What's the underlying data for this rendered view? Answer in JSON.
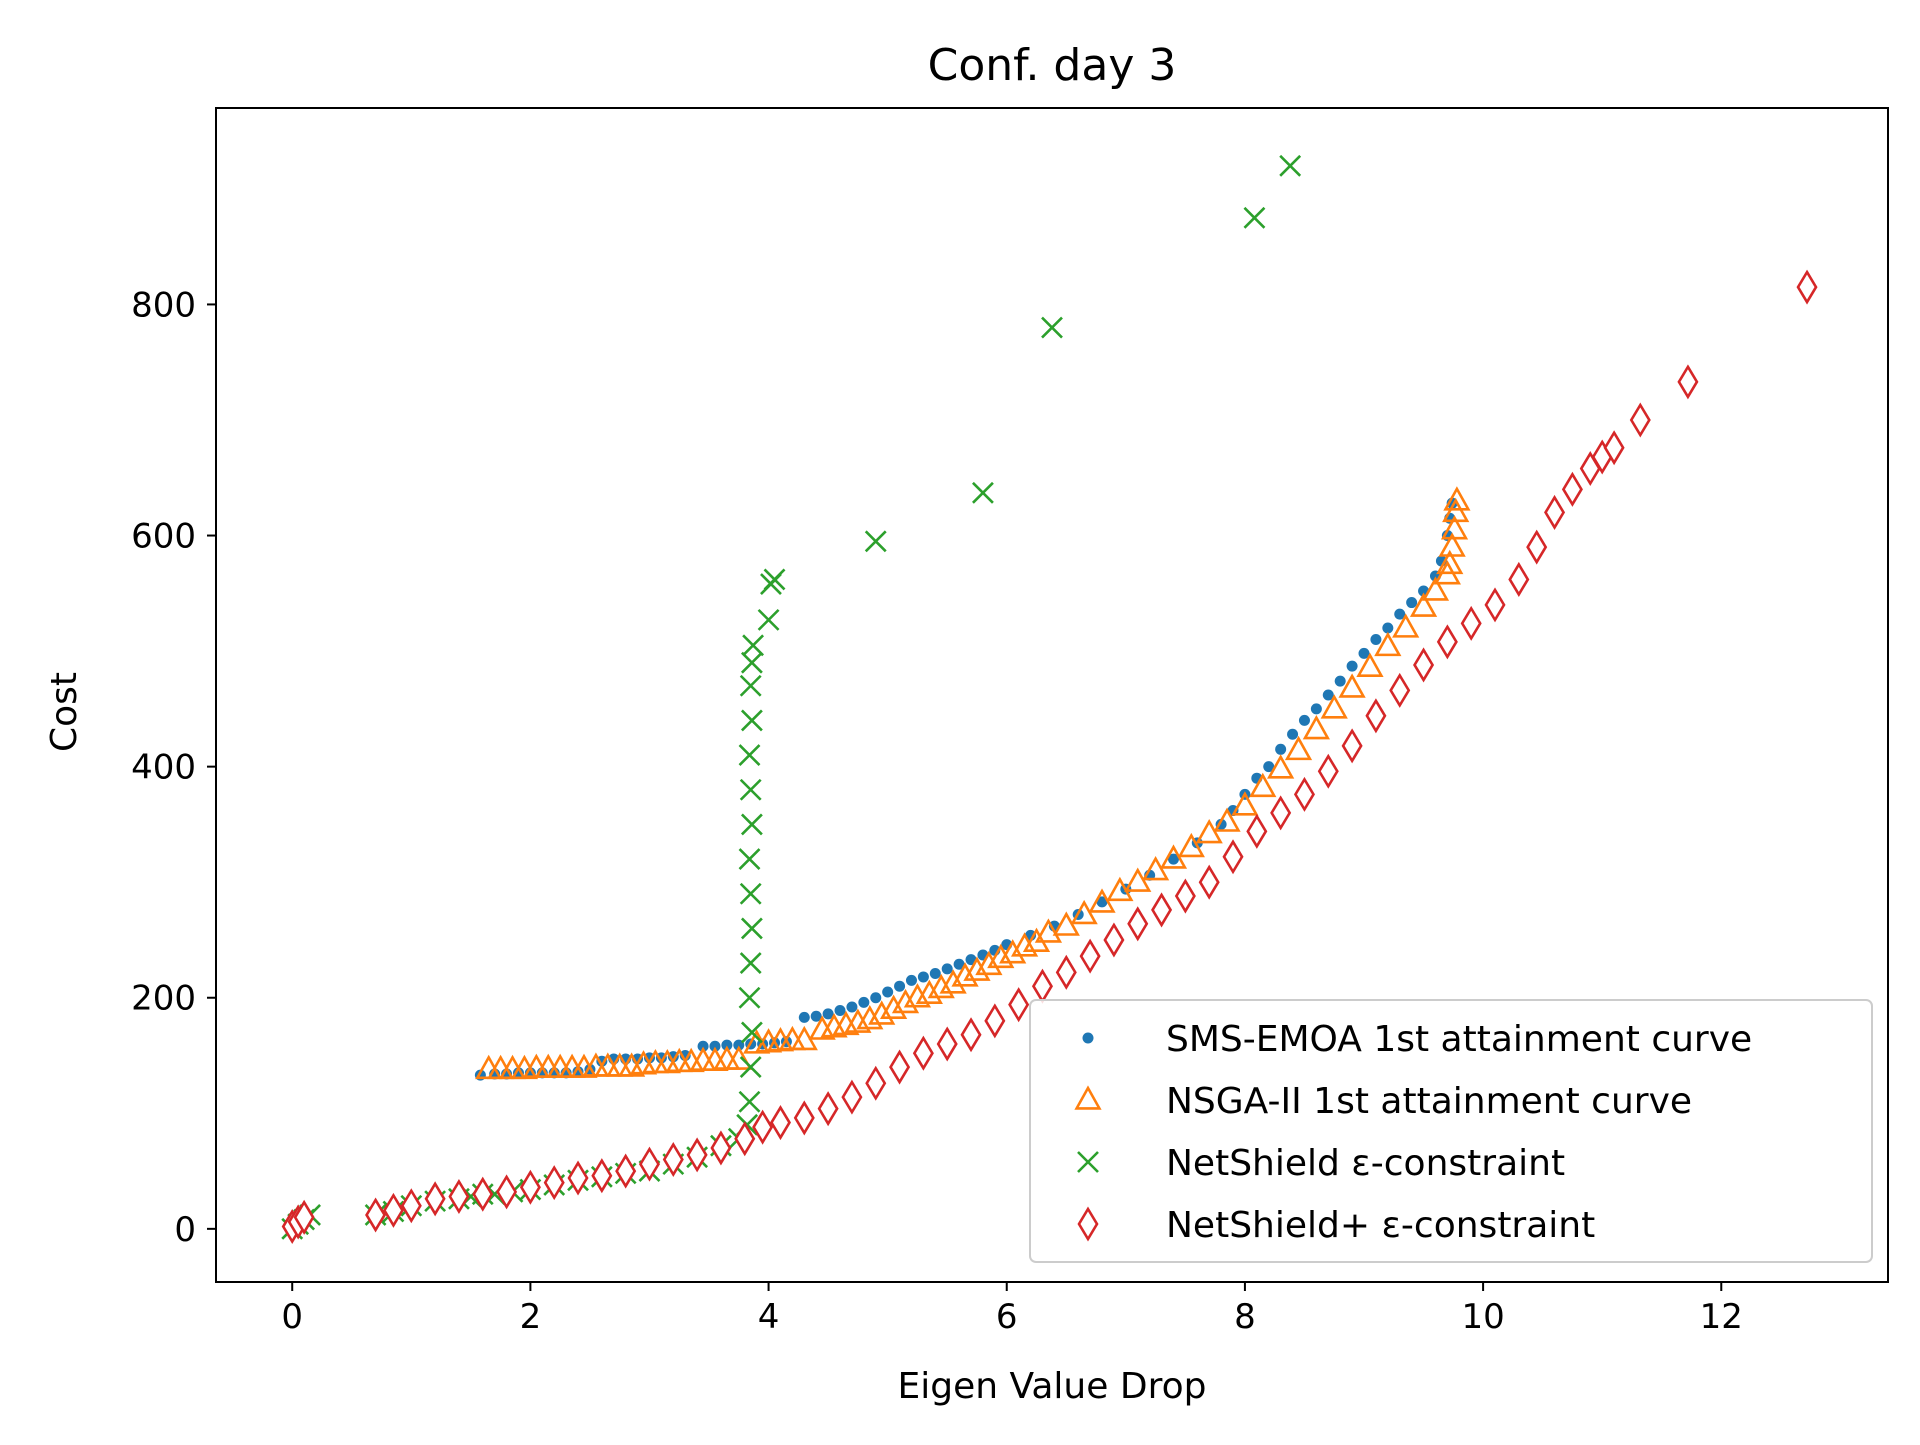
{
  "chart_data": {
    "type": "scatter",
    "title": "Conf. day 3",
    "xlabel": "Eigen Value Drop",
    "ylabel": "Cost",
    "xlim": [
      -0.64,
      13.4
    ],
    "ylim": [
      -46,
      970
    ],
    "xticks": [
      0,
      2,
      4,
      6,
      8,
      10,
      12
    ],
    "yticks": [
      0,
      200,
      400,
      600,
      800
    ],
    "grid": false,
    "legend_position": "lower right",
    "series": [
      {
        "name": "SMS-EMOA 1st attainment curve",
        "marker": "dot",
        "color": "#1f77b4",
        "points": [
          [
            1.58,
            133
          ],
          [
            1.7,
            134
          ],
          [
            1.8,
            134
          ],
          [
            1.9,
            135
          ],
          [
            2.0,
            135
          ],
          [
            2.1,
            135
          ],
          [
            2.2,
            135
          ],
          [
            2.3,
            135
          ],
          [
            2.4,
            136
          ],
          [
            2.5,
            138
          ],
          [
            2.6,
            145
          ],
          [
            2.7,
            147
          ],
          [
            2.8,
            147
          ],
          [
            2.9,
            147
          ],
          [
            3.0,
            148
          ],
          [
            3.1,
            148
          ],
          [
            3.2,
            149
          ],
          [
            3.3,
            150
          ],
          [
            3.45,
            158
          ],
          [
            3.55,
            158
          ],
          [
            3.65,
            159
          ],
          [
            3.75,
            159
          ],
          [
            3.85,
            160
          ],
          [
            3.95,
            160
          ],
          [
            4.05,
            161
          ],
          [
            4.15,
            162
          ],
          [
            4.3,
            183
          ],
          [
            4.4,
            184
          ],
          [
            4.5,
            186
          ],
          [
            4.6,
            189
          ],
          [
            4.7,
            192
          ],
          [
            4.8,
            196
          ],
          [
            4.9,
            200
          ],
          [
            5.0,
            205
          ],
          [
            5.1,
            210
          ],
          [
            5.2,
            215
          ],
          [
            5.3,
            218
          ],
          [
            5.4,
            221
          ],
          [
            5.5,
            225
          ],
          [
            5.6,
            229
          ],
          [
            5.7,
            233
          ],
          [
            5.8,
            237
          ],
          [
            5.9,
            241
          ],
          [
            6.0,
            246
          ],
          [
            6.2,
            254
          ],
          [
            6.4,
            262
          ],
          [
            6.6,
            272
          ],
          [
            6.8,
            283
          ],
          [
            7.0,
            294
          ],
          [
            7.2,
            306
          ],
          [
            7.4,
            320
          ],
          [
            7.6,
            334
          ],
          [
            7.8,
            350
          ],
          [
            7.9,
            362
          ],
          [
            8.0,
            376
          ],
          [
            8.1,
            390
          ],
          [
            8.2,
            400
          ],
          [
            8.3,
            415
          ],
          [
            8.4,
            428
          ],
          [
            8.5,
            440
          ],
          [
            8.6,
            450
          ],
          [
            8.7,
            462
          ],
          [
            8.8,
            474
          ],
          [
            8.9,
            487
          ],
          [
            9.0,
            498
          ],
          [
            9.1,
            510
          ],
          [
            9.2,
            520
          ],
          [
            9.3,
            532
          ],
          [
            9.4,
            542
          ],
          [
            9.5,
            552
          ],
          [
            9.6,
            565
          ],
          [
            9.65,
            578
          ],
          [
            9.7,
            600
          ],
          [
            9.72,
            615
          ],
          [
            9.74,
            628
          ]
        ]
      },
      {
        "name": "NSGA-II 1st attainment curve",
        "marker": "triangle",
        "color": "#ff7f0e",
        "points": [
          [
            1.65,
            138
          ],
          [
            1.75,
            138
          ],
          [
            1.85,
            138
          ],
          [
            1.95,
            138
          ],
          [
            2.05,
            139
          ],
          [
            2.15,
            139
          ],
          [
            2.25,
            139
          ],
          [
            2.35,
            139
          ],
          [
            2.45,
            139
          ],
          [
            2.55,
            140
          ],
          [
            2.65,
            140
          ],
          [
            2.75,
            140
          ],
          [
            2.85,
            140
          ],
          [
            2.95,
            142
          ],
          [
            3.05,
            143
          ],
          [
            3.15,
            143
          ],
          [
            3.25,
            144
          ],
          [
            3.35,
            144
          ],
          [
            3.45,
            145
          ],
          [
            3.55,
            145
          ],
          [
            3.65,
            146
          ],
          [
            3.75,
            146
          ],
          [
            3.9,
            160
          ],
          [
            4.0,
            161
          ],
          [
            4.1,
            162
          ],
          [
            4.2,
            163
          ],
          [
            4.3,
            163
          ],
          [
            4.45,
            172
          ],
          [
            4.55,
            174
          ],
          [
            4.65,
            176
          ],
          [
            4.75,
            178
          ],
          [
            4.85,
            181
          ],
          [
            4.95,
            185
          ],
          [
            5.05,
            190
          ],
          [
            5.15,
            195
          ],
          [
            5.25,
            200
          ],
          [
            5.35,
            203
          ],
          [
            5.45,
            208
          ],
          [
            5.55,
            212
          ],
          [
            5.65,
            218
          ],
          [
            5.75,
            223
          ],
          [
            5.85,
            228
          ],
          [
            5.95,
            234
          ],
          [
            6.05,
            238
          ],
          [
            6.15,
            244
          ],
          [
            6.25,
            248
          ],
          [
            6.35,
            256
          ],
          [
            6.5,
            262
          ],
          [
            6.65,
            272
          ],
          [
            6.8,
            282
          ],
          [
            6.95,
            292
          ],
          [
            7.1,
            300
          ],
          [
            7.25,
            310
          ],
          [
            7.4,
            320
          ],
          [
            7.55,
            330
          ],
          [
            7.7,
            342
          ],
          [
            7.85,
            352
          ],
          [
            8.0,
            366
          ],
          [
            8.15,
            382
          ],
          [
            8.3,
            398
          ],
          [
            8.45,
            414
          ],
          [
            8.6,
            432
          ],
          [
            8.75,
            450
          ],
          [
            8.9,
            468
          ],
          [
            9.05,
            486
          ],
          [
            9.2,
            504
          ],
          [
            9.35,
            520
          ],
          [
            9.5,
            538
          ],
          [
            9.6,
            552
          ],
          [
            9.7,
            566
          ],
          [
            9.72,
            575
          ],
          [
            9.74,
            590
          ],
          [
            9.76,
            605
          ],
          [
            9.77,
            620
          ],
          [
            9.78,
            630
          ]
        ]
      },
      {
        "name": "NetShield ε-constraint",
        "marker": "x",
        "color": "#2ca02c",
        "points": [
          [
            0.0,
            0
          ],
          [
            0.05,
            4
          ],
          [
            0.1,
            8
          ],
          [
            0.15,
            12
          ],
          [
            0.7,
            12
          ],
          [
            0.85,
            15
          ],
          [
            1.0,
            20
          ],
          [
            1.2,
            24
          ],
          [
            1.4,
            26
          ],
          [
            1.5,
            28
          ],
          [
            1.6,
            30
          ],
          [
            1.7,
            30
          ],
          [
            1.85,
            32
          ],
          [
            2.0,
            34
          ],
          [
            2.2,
            38
          ],
          [
            2.4,
            42
          ],
          [
            2.6,
            45
          ],
          [
            2.8,
            48
          ],
          [
            3.0,
            50
          ],
          [
            3.2,
            56
          ],
          [
            3.4,
            62
          ],
          [
            3.6,
            72
          ],
          [
            3.75,
            78
          ],
          [
            3.82,
            90
          ],
          [
            3.84,
            110
          ],
          [
            3.85,
            140
          ],
          [
            3.86,
            170
          ],
          [
            3.84,
            200
          ],
          [
            3.85,
            230
          ],
          [
            3.86,
            260
          ],
          [
            3.85,
            290
          ],
          [
            3.84,
            320
          ],
          [
            3.86,
            350
          ],
          [
            3.85,
            380
          ],
          [
            3.84,
            410
          ],
          [
            3.86,
            440
          ],
          [
            3.85,
            470
          ],
          [
            3.86,
            490
          ],
          [
            3.87,
            505
          ],
          [
            4.0,
            527
          ],
          [
            4.02,
            558
          ],
          [
            4.05,
            562
          ],
          [
            4.9,
            595
          ],
          [
            5.8,
            637
          ],
          [
            6.38,
            780
          ],
          [
            8.08,
            875
          ],
          [
            8.38,
            920
          ]
        ]
      },
      {
        "name": "NetShield+ ε-constraint",
        "marker": "diamond",
        "color": "#d62728",
        "points": [
          [
            0.0,
            2
          ],
          [
            0.05,
            6
          ],
          [
            0.1,
            10
          ],
          [
            0.7,
            12
          ],
          [
            0.85,
            16
          ],
          [
            1.0,
            20
          ],
          [
            1.2,
            26
          ],
          [
            1.4,
            28
          ],
          [
            1.6,
            30
          ],
          [
            1.8,
            32
          ],
          [
            2.0,
            36
          ],
          [
            2.2,
            40
          ],
          [
            2.4,
            44
          ],
          [
            2.6,
            46
          ],
          [
            2.8,
            50
          ],
          [
            3.0,
            56
          ],
          [
            3.2,
            60
          ],
          [
            3.4,
            64
          ],
          [
            3.6,
            70
          ],
          [
            3.8,
            78
          ],
          [
            3.95,
            88
          ],
          [
            4.1,
            92
          ],
          [
            4.3,
            96
          ],
          [
            4.5,
            104
          ],
          [
            4.7,
            114
          ],
          [
            4.9,
            126
          ],
          [
            5.1,
            140
          ],
          [
            5.3,
            152
          ],
          [
            5.5,
            160
          ],
          [
            5.7,
            168
          ],
          [
            5.9,
            180
          ],
          [
            6.1,
            194
          ],
          [
            6.3,
            210
          ],
          [
            6.5,
            222
          ],
          [
            6.7,
            236
          ],
          [
            6.9,
            250
          ],
          [
            7.1,
            264
          ],
          [
            7.3,
            276
          ],
          [
            7.5,
            288
          ],
          [
            7.7,
            300
          ],
          [
            7.9,
            322
          ],
          [
            8.1,
            344
          ],
          [
            8.3,
            360
          ],
          [
            8.5,
            376
          ],
          [
            8.7,
            396
          ],
          [
            8.9,
            418
          ],
          [
            9.1,
            444
          ],
          [
            9.3,
            466
          ],
          [
            9.5,
            488
          ],
          [
            9.7,
            508
          ],
          [
            9.9,
            524
          ],
          [
            10.1,
            540
          ],
          [
            10.3,
            562
          ],
          [
            10.45,
            590
          ],
          [
            10.6,
            620
          ],
          [
            10.75,
            640
          ],
          [
            10.9,
            658
          ],
          [
            11.0,
            668
          ],
          [
            11.1,
            676
          ],
          [
            11.32,
            700
          ],
          [
            11.72,
            733
          ],
          [
            12.72,
            815
          ]
        ]
      }
    ]
  }
}
